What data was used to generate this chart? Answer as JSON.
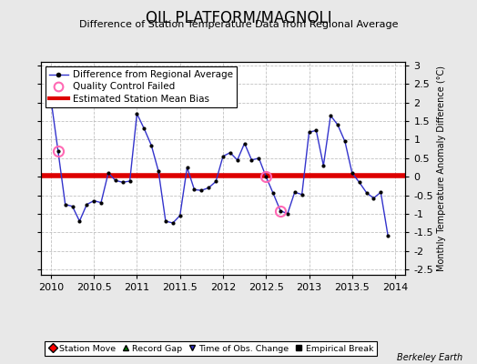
{
  "title": "OIL PLATFORM/MAGNOLI",
  "subtitle": "Difference of Station Temperature Data from Regional Average",
  "ylabel_right": "Monthly Temperature Anomaly Difference (°C)",
  "credit": "Berkeley Earth",
  "background_color": "#e8e8e8",
  "plot_bg_color": "#ffffff",
  "mean_bias": 0.03,
  "xlim": [
    2009.88,
    2014.12
  ],
  "ylim": [
    -2.65,
    3.1
  ],
  "yticks": [
    -2.5,
    -2,
    -1.5,
    -1,
    -0.5,
    0,
    0.5,
    1,
    1.5,
    2,
    2.5,
    3
  ],
  "xticks": [
    2010,
    2010.5,
    2011,
    2011.5,
    2012,
    2012.5,
    2013,
    2013.5,
    2014
  ],
  "xticklabels": [
    "2010",
    "2010.5",
    "2011",
    "2011.5",
    "2012",
    "2012.5",
    "2013",
    "2013.5",
    "2014"
  ],
  "time": [
    2010.0,
    2010.083,
    2010.167,
    2010.25,
    2010.333,
    2010.417,
    2010.5,
    2010.583,
    2010.667,
    2010.75,
    2010.833,
    2010.917,
    2011.0,
    2011.083,
    2011.167,
    2011.25,
    2011.333,
    2011.417,
    2011.5,
    2011.583,
    2011.667,
    2011.75,
    2011.833,
    2011.917,
    2012.0,
    2012.083,
    2012.167,
    2012.25,
    2012.333,
    2012.417,
    2012.5,
    2012.583,
    2012.667,
    2012.75,
    2012.833,
    2012.917,
    2013.0,
    2013.083,
    2013.167,
    2013.25,
    2013.333,
    2013.417,
    2013.5,
    2013.583,
    2013.667,
    2013.75,
    2013.833,
    2013.917
  ],
  "values": [
    2.1,
    0.7,
    -0.75,
    -0.8,
    -1.2,
    -0.75,
    -0.65,
    -0.7,
    0.1,
    -0.1,
    -0.15,
    -0.12,
    1.7,
    1.3,
    0.85,
    0.15,
    -1.2,
    -1.25,
    -1.05,
    0.25,
    -0.35,
    -0.37,
    -0.3,
    -0.13,
    0.55,
    0.65,
    0.45,
    0.9,
    0.45,
    0.5,
    0.0,
    -0.45,
    -0.92,
    -1.0,
    -0.42,
    -0.48,
    1.2,
    1.25,
    0.3,
    1.65,
    1.4,
    0.95,
    0.1,
    -0.15,
    -0.43,
    -0.58,
    -0.42,
    -1.6
  ],
  "qc_failed_indices": [
    1,
    30,
    32
  ],
  "line_color": "#3333cc",
  "dot_color": "#000000",
  "qc_color": "#ff69b4",
  "bias_color": "#dd0000",
  "grid_color": "#bbbbbb",
  "title_fontsize": 12,
  "subtitle_fontsize": 8,
  "tick_fontsize": 8,
  "legend_fontsize": 7.5,
  "ylabel_fontsize": 7
}
